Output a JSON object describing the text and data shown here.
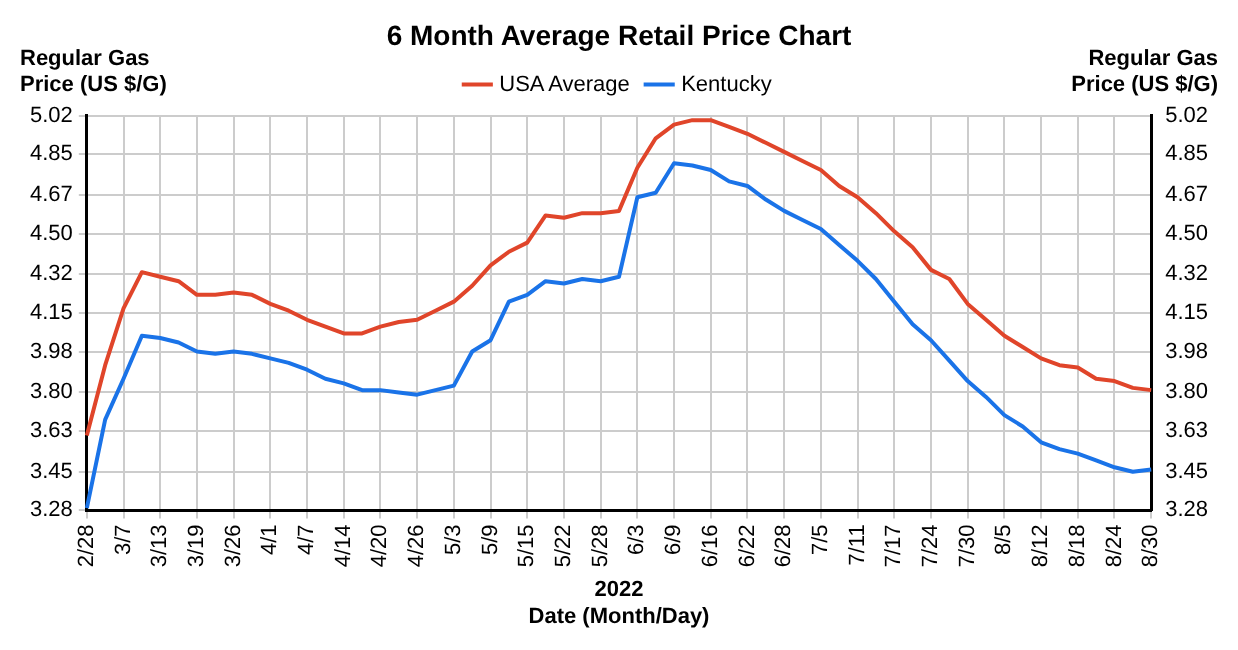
{
  "chart_data": {
    "type": "line",
    "title": "6 Month Average Retail Price Chart",
    "xlabel": "Date (Month/Day)",
    "ylabel": "Regular Gas Price (US $/G)",
    "y2label": "Regular Gas Price (US $/G)",
    "annotations": [
      "2022"
    ],
    "categories": [
      "2/28",
      null,
      "3/7",
      null,
      "3/13",
      null,
      "3/19",
      null,
      "3/26",
      null,
      "4/1",
      null,
      "4/7",
      null,
      "4/14",
      null,
      "4/20",
      null,
      "4/26",
      null,
      "5/3",
      null,
      "5/9",
      null,
      "5/15",
      null,
      "5/22",
      null,
      "5/28",
      null,
      "6/3",
      null,
      "6/9",
      null,
      "6/16",
      null,
      "6/22",
      null,
      "6/28",
      null,
      "7/5",
      null,
      "7/11",
      null,
      "7/17",
      null,
      "7/24",
      null,
      "7/30",
      null,
      "8/5",
      null,
      "8/12",
      null,
      "8/18",
      null,
      "8/24",
      null,
      "8/30"
    ],
    "series": [
      {
        "name": "USA Average",
        "color": "#e0452a",
        "values": [
          3.61,
          3.92,
          4.17,
          4.33,
          4.31,
          4.29,
          4.23,
          4.23,
          4.24,
          4.23,
          4.19,
          4.16,
          4.12,
          4.09,
          4.06,
          4.06,
          4.09,
          4.11,
          4.12,
          4.16,
          4.2,
          4.27,
          4.36,
          4.42,
          4.46,
          4.58,
          4.57,
          4.59,
          4.59,
          4.6,
          4.79,
          4.92,
          4.98,
          5.0,
          5.0,
          4.97,
          4.94,
          4.9,
          4.86,
          4.82,
          4.78,
          4.71,
          4.66,
          4.59,
          4.51,
          4.44,
          4.34,
          4.3,
          4.19,
          4.12,
          4.05,
          4.0,
          3.95,
          3.92,
          3.91,
          3.86,
          3.85,
          3.82,
          3.81
        ]
      },
      {
        "name": "Kentucky",
        "color": "#1a73e8",
        "values": [
          3.29,
          3.68,
          3.86,
          4.05,
          4.04,
          4.02,
          3.98,
          3.97,
          3.98,
          3.97,
          3.95,
          3.93,
          3.9,
          3.86,
          3.84,
          3.81,
          3.81,
          3.8,
          3.79,
          3.81,
          3.83,
          3.98,
          4.03,
          4.2,
          4.23,
          4.29,
          4.28,
          4.3,
          4.29,
          4.31,
          4.66,
          4.68,
          4.81,
          4.8,
          4.78,
          4.73,
          4.71,
          4.65,
          4.6,
          4.56,
          4.52,
          4.45,
          4.38,
          4.3,
          4.2,
          4.1,
          4.03,
          3.94,
          3.85,
          3.78,
          3.7,
          3.65,
          3.58,
          3.55,
          3.53,
          3.5,
          3.47,
          3.45,
          3.46
        ]
      }
    ],
    "ylim": [
      3.28,
      5.02
    ],
    "yticks": [
      3.28,
      3.45,
      3.63,
      {
        "value": 3.8,
        "label": "3.80"
      },
      3.98,
      4.15,
      4.32,
      {
        "value": 4.5,
        "label": "4.50"
      },
      4.67,
      4.85,
      5.02
    ],
    "y2lim": [
      3.28,
      5.02
    ],
    "y2ticks": [
      3.28,
      3.45,
      3.63,
      {
        "value": 3.8,
        "label": "3.80"
      },
      3.98,
      4.15,
      4.32,
      {
        "value": 4.5,
        "label": "4.50"
      },
      4.67,
      4.85,
      5.02
    ],
    "grid": true,
    "legend": "top",
    "marker": "none",
    "line_style": "solid"
  }
}
